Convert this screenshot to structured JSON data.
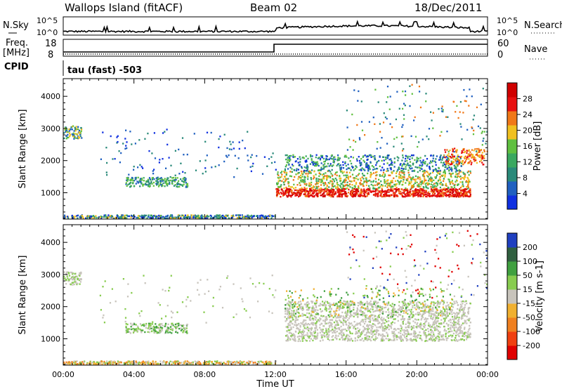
{
  "header": {
    "station": "Wallops Island (fitACF)",
    "beam": "Beam 02",
    "date": "18/Dec/2011"
  },
  "noise_panel": {
    "left_label": "N.Sky",
    "right_label": "N.Search",
    "left_ticks": [
      "10^5",
      "10^0"
    ],
    "right_ticks": [
      "10^5",
      "10^0"
    ]
  },
  "freq_panel": {
    "left_label_line1": "Freq.",
    "left_label_line2": "[MHz]",
    "right_label": "Nave",
    "left_ticks": [
      "18",
      "8"
    ],
    "right_ticks": [
      "60",
      "0"
    ]
  },
  "cpid": {
    "label": "CPID",
    "text": "tau (fast) -503"
  },
  "x_axis": {
    "label": "Time UT",
    "ticks": [
      "00:00",
      "04:00",
      "08:00",
      "12:00",
      "16:00",
      "20:00",
      "00:00"
    ],
    "hours": [
      0,
      4,
      8,
      12,
      16,
      20,
      24
    ]
  },
  "colors": {
    "power": [
      "#1030e0",
      "#2060c0",
      "#2a8a7a",
      "#3aa860",
      "#60c040",
      "#f0c020",
      "#f07818",
      "#e81010",
      "#d00000"
    ],
    "velocity": [
      "#e00000",
      "#f04010",
      "#f08020",
      "#f0b030",
      "#c8c4bc",
      "#88cc50",
      "#40a040",
      "#306040",
      "#2040c0"
    ]
  },
  "chart_data": [
    {
      "type": "heatmap",
      "name": "Power",
      "ylabel": "Slant Range [km]",
      "xlabel": "",
      "yticks": [
        1000,
        2000,
        3000,
        4000
      ],
      "ylim": [
        180,
        4550
      ],
      "xlim_hours": [
        0,
        24
      ],
      "colorbar": {
        "label": "Power [dB]",
        "ticks": [
          "4",
          "8",
          "12",
          "16",
          "20",
          "24",
          "28"
        ],
        "range": [
          0,
          30
        ]
      }
    },
    {
      "type": "heatmap",
      "name": "Velocity",
      "ylabel": "Slant Range [km]",
      "xlabel": "Time UT",
      "yticks": [
        1000,
        2000,
        3000,
        4000
      ],
      "ylim": [
        180,
        4550
      ],
      "xlim_hours": [
        0,
        24
      ],
      "colorbar": {
        "label": "Velocity [m s-1]",
        "ticks": [
          "200",
          "100",
          "50",
          "15",
          "-15",
          "-50",
          "-100",
          "-200"
        ]
      }
    }
  ]
}
